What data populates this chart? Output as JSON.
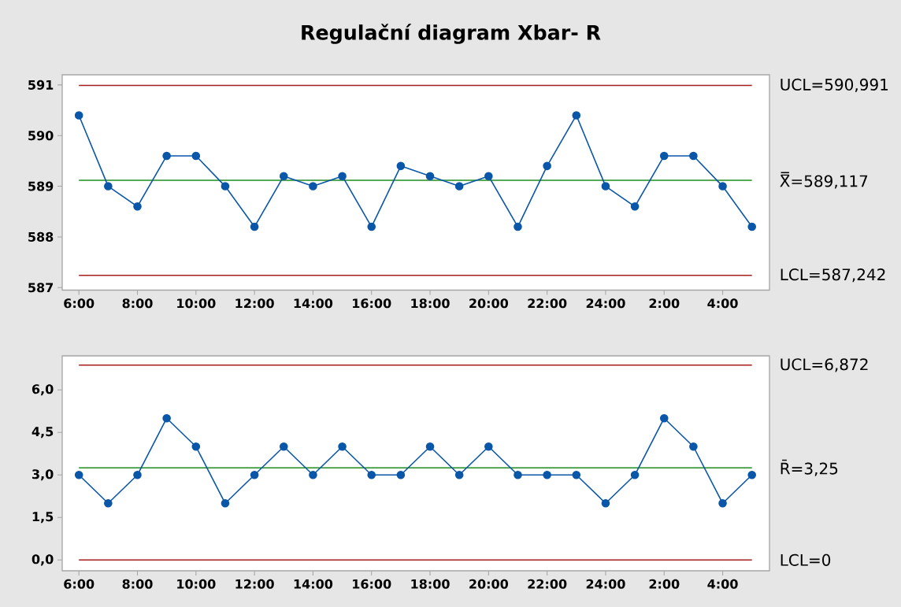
{
  "chart_data": [
    {
      "type": "line",
      "title": "Regulační diagram Xbar- R",
      "categories": [
        "6:00",
        null,
        "8:00",
        null,
        "10:00",
        null,
        "12:00",
        null,
        "14:00",
        null,
        "16:00",
        null,
        "18:00",
        null,
        "20:00",
        null,
        "22:00",
        null,
        "24:00",
        null,
        "2:00",
        null,
        "4:00",
        null
      ],
      "values": [
        590.4,
        589.0,
        588.6,
        589.6,
        589.6,
        589.0,
        588.2,
        589.2,
        589.0,
        589.2,
        588.2,
        589.4,
        589.2,
        589.0,
        589.2,
        588.2,
        589.4,
        590.4,
        589.0,
        588.6,
        589.6,
        589.6,
        589.0,
        588.2
      ],
      "color": "#0a56a8",
      "marker": "circle",
      "ylim": [
        586.95,
        591.2
      ],
      "yticks": [
        587,
        588,
        589,
        590,
        591
      ],
      "ref_lines": [
        {
          "axis": "y",
          "value": 590.991,
          "label": "UCL=590,991",
          "color": "#a51d1d"
        },
        {
          "axis": "y",
          "value": 589.117,
          "label": "X̿=589,117",
          "color": "#1e8c1e"
        },
        {
          "axis": "y",
          "value": 587.242,
          "label": "LCL=587,242",
          "color": "#a51d1d"
        }
      ]
    },
    {
      "type": "line",
      "categories": [
        "6:00",
        null,
        "8:00",
        null,
        "10:00",
        null,
        "12:00",
        null,
        "14:00",
        null,
        "16:00",
        null,
        "18:00",
        null,
        "20:00",
        null,
        "22:00",
        null,
        "24:00",
        null,
        "2:00",
        null,
        "4:00",
        null
      ],
      "values": [
        3,
        2,
        3,
        5,
        4,
        2,
        3,
        4,
        3,
        4,
        3,
        3,
        4,
        3,
        4,
        3,
        3,
        3,
        2,
        3,
        5,
        4,
        2,
        3
      ],
      "color": "#0a56a8",
      "marker": "circle",
      "ylim": [
        -0.38,
        7.2
      ],
      "yticks": [
        {
          "value": 0,
          "label": "0,0"
        },
        {
          "value": 1.5,
          "label": "1,5"
        },
        {
          "value": 3,
          "label": "3,0"
        },
        {
          "value": 4.5,
          "label": "4,5"
        },
        {
          "value": 6,
          "label": "6,0"
        }
      ],
      "ref_lines": [
        {
          "axis": "y",
          "value": 6.872,
          "label": "UCL=6,872",
          "color": "#a51d1d"
        },
        {
          "axis": "y",
          "value": 3.25,
          "label": "R̄=3,25",
          "color": "#1e8c1e"
        },
        {
          "axis": "y",
          "value": 0,
          "label": "LCL=0",
          "color": "#a51d1d"
        }
      ]
    }
  ]
}
